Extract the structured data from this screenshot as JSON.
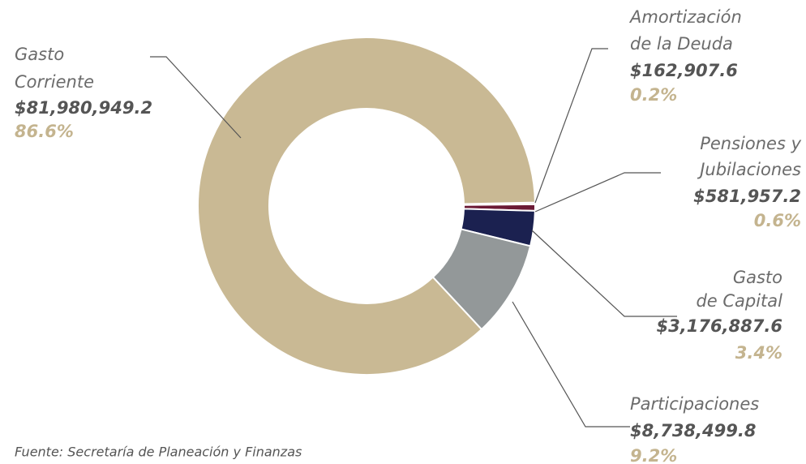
{
  "chart_data": {
    "type": "donut",
    "categories": [
      [
        "Amortización",
        "de la Deuda"
      ],
      [
        "Pensiones y",
        "Jubilaciones"
      ],
      [
        "Gasto",
        "de Capital"
      ],
      [
        "Participaciones"
      ],
      [
        "Gasto",
        "Corriente"
      ]
    ],
    "values": [
      162907.6,
      581957.2,
      3176887.6,
      8738499.8,
      81980949.2
    ],
    "value_labels": [
      "$162,907.6",
      "$581,957.2",
      "$3,176,887.6",
      "$8,738,499.8",
      "$81,980,949.2"
    ],
    "percent_labels": [
      "0.2%",
      "0.6%",
      "3.4%",
      "9.2%",
      "86.6%"
    ],
    "colors": [
      "#b8b3ab",
      "#6b1a35",
      "#1b2150",
      "#939899",
      "#c9b994"
    ],
    "source": "Fuente: Secretaría de Planeación y Finanzas"
  }
}
